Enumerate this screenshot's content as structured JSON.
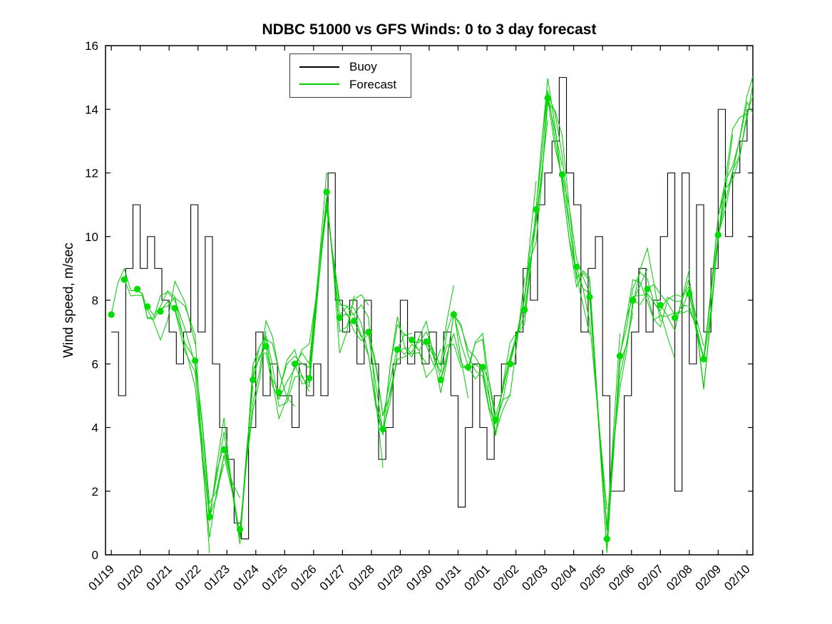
{
  "title": "NDBC 51000 vs GFS Winds: 0 to 3 day forecast",
  "axes": {
    "ylabel": "Wind speed, m/sec"
  },
  "legend": {
    "items": [
      {
        "label": "Buoy",
        "color": "#000000"
      },
      {
        "label": "Forecast",
        "color": "#00CC00"
      }
    ]
  },
  "chart_data": {
    "type": "line",
    "title": "NDBC 51000 vs GFS Winds: 0 to 3 day forecast",
    "xlabel": "",
    "ylabel": "Wind speed, m/sec",
    "x_units": "days since 01/19",
    "x_tick_labels": [
      "01/19",
      "01/20",
      "01/21",
      "01/22",
      "01/23",
      "01/24",
      "01/25",
      "01/26",
      "01/27",
      "01/28",
      "01/29",
      "01/30",
      "01/31",
      "02/01",
      "02/02",
      "02/03",
      "02/04",
      "02/05",
      "02/06",
      "02/07",
      "02/08",
      "02/09",
      "02/10"
    ],
    "xlim": [
      -0.2,
      22.2
    ],
    "ylim": [
      0,
      16
    ],
    "yticks": [
      0,
      2,
      4,
      6,
      8,
      10,
      12,
      14,
      16
    ],
    "grid": false,
    "legend_position": "top-center-left",
    "series": [
      {
        "name": "Buoy",
        "style": "step",
        "color": "#000000",
        "x_start": 0,
        "x_step": 0.25,
        "y": [
          7,
          5,
          9,
          11,
          9,
          10,
          9,
          8,
          7,
          6,
          7,
          11,
          7,
          10,
          6,
          4,
          3,
          1,
          0.5,
          4,
          7,
          5,
          6,
          5,
          5,
          4,
          6,
          5,
          6,
          5,
          12,
          8,
          7,
          8,
          6,
          8,
          6,
          3,
          4,
          6,
          8,
          6,
          7,
          6,
          7,
          6,
          7,
          5,
          1.5,
          4,
          6,
          4,
          3,
          5,
          6,
          6,
          7,
          9,
          8,
          11,
          12,
          13,
          15,
          12,
          11,
          7,
          9,
          10,
          5,
          2,
          2,
          5,
          7,
          9,
          7,
          8,
          10,
          12,
          2,
          12,
          6,
          11,
          7,
          9,
          14,
          10,
          12,
          13,
          14
        ]
      },
      {
        "name": "Forecast analysis points",
        "style": "scatter",
        "color": "#00DD00",
        "marker": "filled-circle",
        "x": [
          0.0,
          0.45,
          0.9,
          1.25,
          1.7,
          2.2,
          2.9,
          3.4,
          3.9,
          4.45,
          4.9,
          5.35,
          5.8,
          6.35,
          6.85,
          7.45,
          7.9,
          8.4,
          8.9,
          9.4,
          9.9,
          10.4,
          10.9,
          11.4,
          11.85,
          12.35,
          12.85,
          13.3,
          13.8,
          14.3,
          14.7,
          15.1,
          15.6,
          16.1,
          16.55,
          17.15,
          17.6,
          18.05,
          18.55,
          19.0,
          19.5,
          20.0,
          20.5,
          21.0
        ],
        "y": [
          7.55,
          8.65,
          8.35,
          7.8,
          7.65,
          7.75,
          6.1,
          1.2,
          3.3,
          0.8,
          5.5,
          6.55,
          5.1,
          6.0,
          5.55,
          11.4,
          7.45,
          7.35,
          7.0,
          3.95,
          6.45,
          6.75,
          6.7,
          5.5,
          7.55,
          5.9,
          5.9,
          4.25,
          6.0,
          7.7,
          10.85,
          14.35,
          11.95,
          9.05,
          8.1,
          0.5,
          6.25,
          8.0,
          8.35,
          7.85,
          7.45,
          8.2,
          6.15,
          10.05
        ]
      }
    ],
    "forecast": {
      "name": "Forecast",
      "color": "#00CC00",
      "run_interval_hours": 12,
      "run_length_days": 3,
      "spread": 1.25,
      "extension_x": [
        21.5,
        22.0,
        22.5,
        23.0
      ],
      "extension_y": [
        12.2,
        14.4,
        14.9,
        14.0
      ]
    }
  }
}
